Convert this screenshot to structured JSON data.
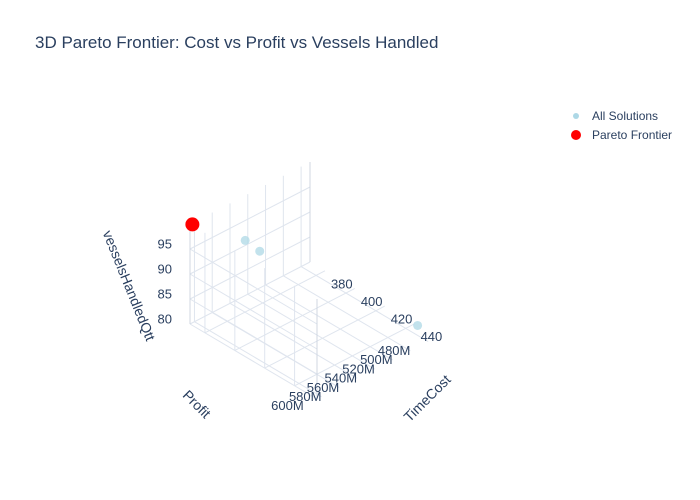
{
  "chart_data": {
    "type": "scatter3d",
    "title": "3D Pareto Frontier: Cost vs Profit vs Vessels Handled",
    "axes": {
      "x": {
        "label": "TimeCost",
        "range": [
          370,
          455
        ],
        "ticks": [
          380,
          400,
          420,
          440
        ]
      },
      "y": {
        "label": "Profit",
        "range": [
          470000000,
          605000000
        ],
        "ticks": [
          480000000,
          500000000,
          520000000,
          540000000,
          560000000,
          580000000,
          600000000
        ],
        "tick_labels": [
          "480M",
          "500M",
          "520M",
          "540M",
          "560M",
          "580M",
          "600M"
        ]
      },
      "z": {
        "label": "vesselsHandledQtt",
        "range": [
          80,
          100
        ],
        "ticks": [
          80,
          85,
          90,
          95
        ]
      }
    },
    "grid": true,
    "legend": "top-right",
    "series": [
      {
        "name": "All Solutions",
        "color": "#add8e6",
        "points": [
          {
            "x": 445,
            "y": 475000000,
            "z": 81
          },
          {
            "x": 376,
            "y": 553000000,
            "z": 93
          },
          {
            "x": 378,
            "y": 540000000,
            "z": 90
          }
        ]
      },
      {
        "name": "Pareto Frontier",
        "color": "#ff0000",
        "points": [
          {
            "x": 371,
            "y": 604000000,
            "z": 100
          }
        ]
      }
    ]
  }
}
